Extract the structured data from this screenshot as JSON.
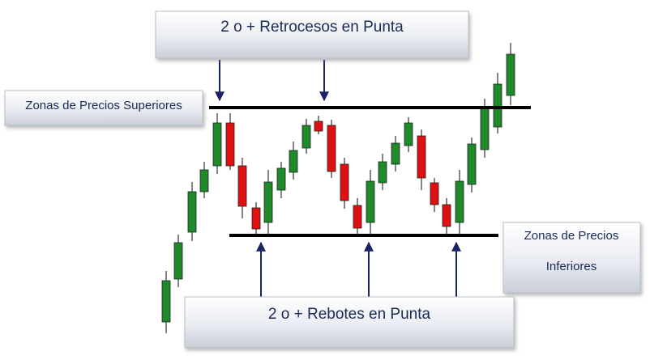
{
  "top_label": "2 o + Retrocesos en Punta",
  "upper_zone_label": "Zonas de Precios Superiores",
  "lower_zone_label": [
    "Zonas de Precios",
    "Inferiores"
  ],
  "bottom_label": "2 o + Rebotes en Punta"
}
